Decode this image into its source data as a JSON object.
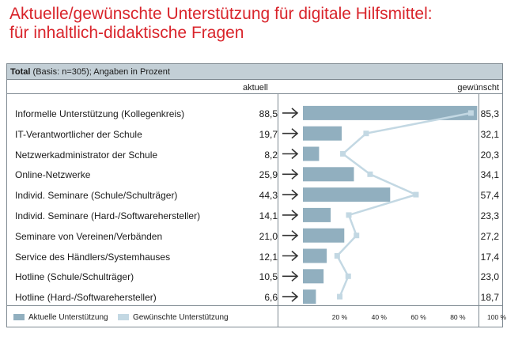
{
  "title_line1": "Aktuelle/gewünschte Unterstützung für digitale Hilfsmittel:",
  "title_line2": "für inhaltlich-didaktische Fragen",
  "basis_bold": "Total",
  "basis_rest": " (Basis: n=305); Angaben in Prozent",
  "col_current": "aktuell",
  "col_desired": "gewünscht",
  "colors": {
    "current": "#91afbf",
    "desired": "#c3d8e3",
    "title": "#d9242b"
  },
  "chart_data": {
    "type": "bar",
    "title": "Aktuelle/gewünschte Unterstützung für digitale Hilfsmittel: für inhaltlich-didaktische Fragen",
    "xlim": [
      0,
      100
    ],
    "xticks": [
      "20 %",
      "40 %",
      "60 %",
      "80 %",
      "100 %"
    ],
    "tick_values": [
      20,
      40,
      60,
      80,
      100
    ],
    "categories": [
      "Informelle Unterstützung (Kollegenkreis)",
      "IT-Verantwortlicher der Schule",
      "Netzwerkadministrator der Schule",
      "Online-Netzwerke",
      "Individ. Seminare (Schule/Schulträger)",
      "Individ. Seminare (Hard-/Softwarehersteller)",
      "Seminare von Vereinen/Verbänden",
      "Service des Händlers/Systemhauses",
      "Hotline (Schule/Schulträger)",
      "Hotline (Hard-/Softwarehersteller)"
    ],
    "current_labels": [
      "88,5",
      "19,7",
      "8,2",
      "25,9",
      "44,3",
      "14,1",
      "21,0",
      "12,1",
      "10,5",
      "6,6"
    ],
    "desired_labels": [
      "85,3",
      "32,1",
      "20,3",
      "34,1",
      "57,4",
      "23,3",
      "27,2",
      "17,4",
      "23,0",
      "18,7"
    ],
    "series": [
      {
        "name": "Aktuelle Unterstützung",
        "type": "bar",
        "values": [
          88.5,
          19.7,
          8.2,
          25.9,
          44.3,
          14.1,
          21.0,
          12.1,
          10.5,
          6.6
        ]
      },
      {
        "name": "Gewünschte Unterstützung",
        "type": "line",
        "values": [
          85.3,
          32.1,
          20.3,
          34.1,
          57.4,
          23.3,
          27.2,
          17.4,
          23.0,
          18.7
        ]
      }
    ]
  }
}
